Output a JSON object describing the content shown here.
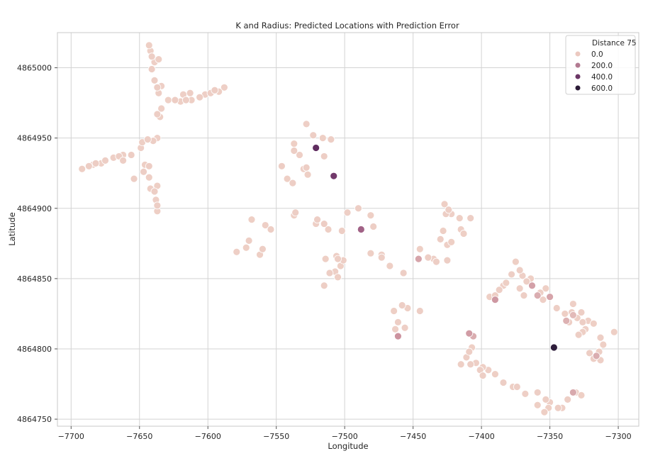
{
  "chart_data": {
    "type": "scatter",
    "title": "K and Radius: Predicted Locations with Prediction Error",
    "xlabel": "Longitude",
    "ylabel": "Latitude",
    "xlim": [
      -7710,
      -7285
    ],
    "ylim": [
      4864745,
      4865025
    ],
    "xticks": [
      -7700,
      -7650,
      -7600,
      -7550,
      -7500,
      -7450,
      -7400,
      -7350,
      -7300
    ],
    "yticks": [
      4864750,
      4864800,
      4864850,
      4864900,
      4864950,
      4865000
    ],
    "grid": true,
    "legend": {
      "title": "Distance 75",
      "placement": "top-right",
      "entries": [
        {
          "label": "0.0",
          "color": "#ecc9c0"
        },
        {
          "label": "200.0",
          "color": "#b27a91"
        },
        {
          "label": "400.0",
          "color": "#6b3766"
        },
        {
          "label": "600.0",
          "color": "#2b1a36"
        }
      ]
    },
    "color_scale": {
      "min": 0,
      "max": 650,
      "colors": [
        "#f0d3c8",
        "#c98e9c",
        "#8d4c7b",
        "#5e2c5f",
        "#231a33"
      ]
    },
    "points": [
      [
        -7643,
        4865016,
        10
      ],
      [
        -7642,
        4865012,
        8
      ],
      [
        -7641,
        4865008,
        12
      ],
      [
        -7639,
        4865004,
        9
      ],
      [
        -7641,
        4864999,
        14
      ],
      [
        -7636,
        4865006,
        10
      ],
      [
        -7639,
        4864991,
        11
      ],
      [
        -7637,
        4864986,
        15
      ],
      [
        -7634,
        4864987,
        9
      ],
      [
        -7636,
        4864982,
        12
      ],
      [
        -7629,
        4864977,
        8
      ],
      [
        -7624,
        4864977,
        14
      ],
      [
        -7620,
        4864976,
        10
      ],
      [
        -7616,
        4864977,
        11
      ],
      [
        -7618,
        4864981,
        9
      ],
      [
        -7613,
        4864982,
        12
      ],
      [
        -7612,
        4864977,
        10
      ],
      [
        -7606,
        4864979,
        13
      ],
      [
        -7602,
        4864981,
        9
      ],
      [
        -7598,
        4864982,
        11
      ],
      [
        -7595,
        4864984,
        14
      ],
      [
        -7592,
        4864983,
        10
      ],
      [
        -7588,
        4864986,
        9
      ],
      [
        -7637,
        4864967,
        12
      ],
      [
        -7635,
        4864965,
        10
      ],
      [
        -7634,
        4864971,
        9
      ],
      [
        -7692,
        4864928,
        10
      ],
      [
        -7687,
        4864930,
        11
      ],
      [
        -7684,
        4864931,
        9
      ],
      [
        -7682,
        4864932,
        14
      ],
      [
        -7678,
        4864932,
        10
      ],
      [
        -7675,
        4864934,
        12
      ],
      [
        -7669,
        4864936,
        9
      ],
      [
        -7665,
        4864937,
        11
      ],
      [
        -7662,
        4864938,
        10
      ],
      [
        -7656,
        4864938,
        13
      ],
      [
        -7662,
        4864934,
        12
      ],
      [
        -7649,
        4864943,
        9
      ],
      [
        -7648,
        4864947,
        10
      ],
      [
        -7644,
        4864949,
        12
      ],
      [
        -7640,
        4864948,
        11
      ],
      [
        -7637,
        4864950,
        9
      ],
      [
        -7646,
        4864931,
        10
      ],
      [
        -7643,
        4864930,
        14
      ],
      [
        -7647,
        4864926,
        11
      ],
      [
        -7643,
        4864922,
        10
      ],
      [
        -7642,
        4864914,
        9
      ],
      [
        -7654,
        4864921,
        12
      ],
      [
        -7637,
        4864916,
        10
      ],
      [
        -7639,
        4864912,
        11
      ],
      [
        -7638,
        4864906,
        9
      ],
      [
        -7637,
        4864902,
        12
      ],
      [
        -7637,
        4864898,
        10
      ],
      [
        -7528,
        4864960,
        9
      ],
      [
        -7523,
        4864952,
        11
      ],
      [
        -7516,
        4864950,
        10
      ],
      [
        -7510,
        4864949,
        12
      ],
      [
        -7537,
        4864946,
        10
      ],
      [
        -7533,
        4864938,
        9
      ],
      [
        -7537,
        4864941,
        12
      ],
      [
        -7528,
        4864929,
        11
      ],
      [
        -7530,
        4864928,
        9
      ],
      [
        -7527,
        4864924,
        10
      ],
      [
        -7546,
        4864930,
        13
      ],
      [
        -7542,
        4864921,
        10
      ],
      [
        -7538,
        4864918,
        11
      ],
      [
        -7515,
        4864937,
        12
      ],
      [
        -7521,
        4864943,
        480
      ],
      [
        -7508,
        4864923,
        420
      ],
      [
        -7536,
        4864897,
        12
      ],
      [
        -7537,
        4864895,
        10
      ],
      [
        -7520,
        4864892,
        11
      ],
      [
        -7521,
        4864889,
        9
      ],
      [
        -7515,
        4864889,
        13
      ],
      [
        -7512,
        4864885,
        10
      ],
      [
        -7502,
        4864884,
        12
      ],
      [
        -7498,
        4864897,
        9
      ],
      [
        -7490,
        4864900,
        11
      ],
      [
        -7481,
        4864895,
        10
      ],
      [
        -7479,
        4864887,
        12
      ],
      [
        -7488,
        4864885,
        270
      ],
      [
        -7568,
        4864892,
        10
      ],
      [
        -7558,
        4864888,
        9
      ],
      [
        -7554,
        4864885,
        12
      ],
      [
        -7570,
        4864877,
        11
      ],
      [
        -7572,
        4864872,
        10
      ],
      [
        -7579,
        4864869,
        9
      ],
      [
        -7560,
        4864871,
        12
      ],
      [
        -7562,
        4864867,
        10
      ],
      [
        -7514,
        4864864,
        10
      ],
      [
        -7505,
        4864864,
        12
      ],
      [
        -7506,
        4864866,
        9
      ],
      [
        -7501,
        4864863,
        11
      ],
      [
        -7503,
        4864859,
        10
      ],
      [
        -7507,
        4864855,
        9
      ],
      [
        -7511,
        4864854,
        12
      ],
      [
        -7505,
        4864851,
        10
      ],
      [
        -7515,
        4864845,
        11
      ],
      [
        -7481,
        4864868,
        10
      ],
      [
        -7473,
        4864867,
        9
      ],
      [
        -7473,
        4864865,
        12
      ],
      [
        -7467,
        4864859,
        10
      ],
      [
        -7457,
        4864854,
        11
      ],
      [
        -7445,
        4864871,
        10
      ],
      [
        -7439,
        4864865,
        12
      ],
      [
        -7435,
        4864864,
        9
      ],
      [
        -7430,
        4864878,
        11
      ],
      [
        -7428,
        4864884,
        10
      ],
      [
        -7433,
        4864862,
        12
      ],
      [
        -7425,
        4864874,
        9
      ],
      [
        -7422,
        4864876,
        10
      ],
      [
        -7425,
        4864863,
        11
      ],
      [
        -7427,
        4864903,
        10
      ],
      [
        -7424,
        4864899,
        12
      ],
      [
        -7422,
        4864896,
        9
      ],
      [
        -7426,
        4864896,
        11
      ],
      [
        -7416,
        4864893,
        10
      ],
      [
        -7408,
        4864893,
        12
      ],
      [
        -7415,
        4864885,
        9
      ],
      [
        -7413,
        4864882,
        10
      ],
      [
        -7446,
        4864864,
        110
      ],
      [
        -7464,
        4864827,
        10
      ],
      [
        -7461,
        4864819,
        11
      ],
      [
        -7463,
        4864814,
        9
      ],
      [
        -7458,
        4864831,
        12
      ],
      [
        -7454,
        4864829,
        10
      ],
      [
        -7445,
        4864827,
        11
      ],
      [
        -7456,
        4864815,
        9
      ],
      [
        -7461,
        4864809,
        150
      ],
      [
        -7394,
        4864837,
        10
      ],
      [
        -7390,
        4864838,
        11
      ],
      [
        -7387,
        4864842,
        12
      ],
      [
        -7384,
        4864845,
        9
      ],
      [
        -7382,
        4864847,
        10
      ],
      [
        -7378,
        4864853,
        12
      ],
      [
        -7375,
        4864862,
        10
      ],
      [
        -7372,
        4864856,
        11
      ],
      [
        -7370,
        4864852,
        9
      ],
      [
        -7367,
        4864848,
        12
      ],
      [
        -7364,
        4864850,
        10
      ],
      [
        -7372,
        4864843,
        9
      ],
      [
        -7369,
        4864838,
        11
      ],
      [
        -7357,
        4864840,
        12
      ],
      [
        -7353,
        4864843,
        10
      ],
      [
        -7355,
        4864835,
        9
      ],
      [
        -7345,
        4864829,
        11
      ],
      [
        -7339,
        4864825,
        10
      ],
      [
        -7334,
        4864826,
        12
      ],
      [
        -7333,
        4864832,
        9
      ],
      [
        -7330,
        4864822,
        10
      ],
      [
        -7327,
        4864826,
        11
      ],
      [
        -7326,
        4864819,
        12
      ],
      [
        -7322,
        4864820,
        9
      ],
      [
        -7318,
        4864818,
        10
      ],
      [
        -7313,
        4864808,
        11
      ],
      [
        -7311,
        4864803,
        10
      ],
      [
        -7314,
        4864798,
        12
      ],
      [
        -7313,
        4864792,
        9
      ],
      [
        -7303,
        4864812,
        10
      ],
      [
        -7321,
        4864797,
        11
      ],
      [
        -7318,
        4864793,
        12
      ],
      [
        -7324,
        4864814,
        9
      ],
      [
        -7326,
        4864812,
        10
      ],
      [
        -7329,
        4864810,
        12
      ],
      [
        -7336,
        4864819,
        11
      ],
      [
        -7390,
        4864835,
        140
      ],
      [
        -7363,
        4864845,
        120
      ],
      [
        -7359,
        4864838,
        90
      ],
      [
        -7350,
        4864837,
        110
      ],
      [
        -7333,
        4864824,
        60
      ],
      [
        -7338,
        4864820,
        80
      ],
      [
        -7316,
        4864795,
        90
      ],
      [
        -7347,
        4864801,
        620
      ],
      [
        -7333,
        4864769,
        100
      ],
      [
        -7409,
        4864811,
        130
      ],
      [
        -7406,
        4864809,
        90
      ],
      [
        -7407,
        4864801,
        10
      ],
      [
        -7409,
        4864798,
        12
      ],
      [
        -7411,
        4864794,
        11
      ],
      [
        -7415,
        4864789,
        10
      ],
      [
        -7408,
        4864789,
        12
      ],
      [
        -7404,
        4864790,
        9
      ],
      [
        -7401,
        4864785,
        11
      ],
      [
        -7399,
        4864787,
        10
      ],
      [
        -7399,
        4864781,
        12
      ],
      [
        -7395,
        4864785,
        9
      ],
      [
        -7390,
        4864782,
        10
      ],
      [
        -7384,
        4864776,
        11
      ],
      [
        -7377,
        4864773,
        10
      ],
      [
        -7374,
        4864773,
        12
      ],
      [
        -7368,
        4864768,
        9
      ],
      [
        -7359,
        4864769,
        11
      ],
      [
        -7359,
        4864760,
        10
      ],
      [
        -7350,
        4864762,
        9
      ],
      [
        -7353,
        4864764,
        12
      ],
      [
        -7351,
        4864758,
        10
      ],
      [
        -7344,
        4864758,
        11
      ],
      [
        -7341,
        4864758,
        9
      ],
      [
        -7354,
        4864755,
        10
      ],
      [
        -7337,
        4864764,
        12
      ],
      [
        -7331,
        4864769,
        9
      ],
      [
        -7327,
        4864767,
        10
      ]
    ]
  }
}
